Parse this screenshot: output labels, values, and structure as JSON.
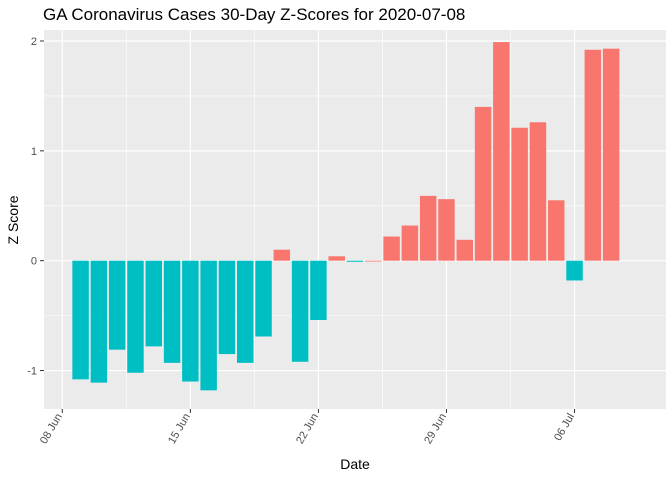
{
  "colors": {
    "positive": "#F8766D",
    "negative": "#00BFC4",
    "panel": "#EBEBEB",
    "grid": "#FFFFFF"
  },
  "chart_data": {
    "type": "bar",
    "title": "GA Coronavirus Cases 30-Day Z-Scores for 2020-07-08",
    "xlabel": "Date",
    "ylabel": "Z Score",
    "ylim": [
      -1.35,
      2.1
    ],
    "yticks": [
      -1,
      0,
      1,
      2
    ],
    "xlim": [
      "2020-06-07",
      "2020-07-11"
    ],
    "xticks": [
      "2020-06-08",
      "2020-06-15",
      "2020-06-22",
      "2020-06-29",
      "2020-07-06"
    ],
    "xtick_labels": [
      "08 Jun",
      "15 Jun",
      "22 Jun",
      "29 Jun",
      "06 Jul"
    ],
    "grid": true,
    "legend": "none",
    "x": [
      "2020-06-09",
      "2020-06-10",
      "2020-06-11",
      "2020-06-12",
      "2020-06-13",
      "2020-06-14",
      "2020-06-15",
      "2020-06-16",
      "2020-06-17",
      "2020-06-18",
      "2020-06-19",
      "2020-06-20",
      "2020-06-21",
      "2020-06-22",
      "2020-06-23",
      "2020-06-24",
      "2020-06-25",
      "2020-06-26",
      "2020-06-27",
      "2020-06-28",
      "2020-06-29",
      "2020-06-30",
      "2020-07-01",
      "2020-07-02",
      "2020-07-03",
      "2020-07-04",
      "2020-07-05",
      "2020-07-06",
      "2020-07-07",
      "2020-07-08"
    ],
    "values": [
      -1.08,
      -1.11,
      -0.81,
      -1.02,
      -0.78,
      -0.93,
      -1.1,
      -1.18,
      -0.85,
      -0.93,
      -0.69,
      0.1,
      -0.92,
      -0.54,
      0.04,
      -0.01,
      0.0,
      0.22,
      0.32,
      0.59,
      0.56,
      0.19,
      1.4,
      1.99,
      1.21,
      1.26,
      0.55,
      -0.18,
      1.92,
      1.93
    ]
  }
}
